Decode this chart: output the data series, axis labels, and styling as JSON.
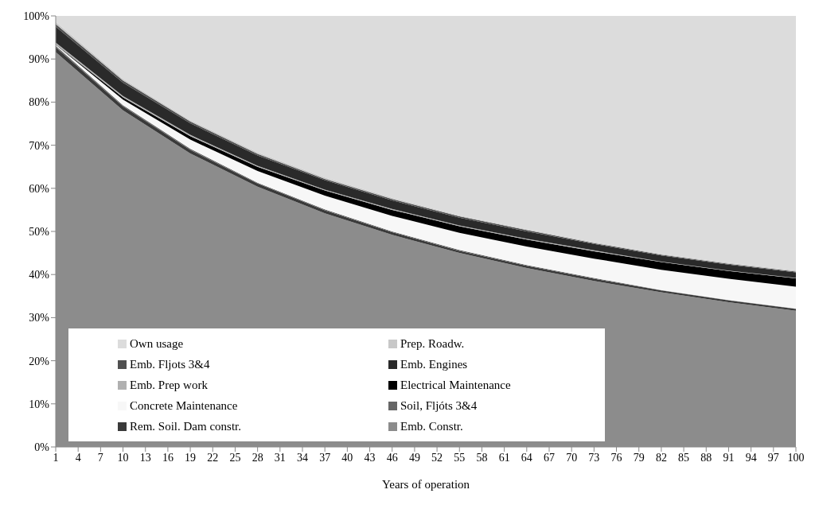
{
  "chart_data": {
    "type": "area",
    "stacked": true,
    "xlabel": "Years of operation",
    "x": [
      1,
      10,
      19,
      28,
      37,
      46,
      55,
      64,
      73,
      82,
      91,
      100
    ],
    "xlim": [
      1,
      100
    ],
    "xticks": [
      1,
      4,
      7,
      10,
      13,
      16,
      19,
      22,
      25,
      28,
      31,
      34,
      37,
      40,
      43,
      46,
      49,
      52,
      55,
      58,
      61,
      64,
      67,
      70,
      73,
      76,
      79,
      82,
      85,
      88,
      91,
      94,
      97,
      100
    ],
    "ylim": [
      0,
      100
    ],
    "yticks": [
      {
        "value": 0,
        "label": "0%"
      },
      {
        "value": 10,
        "label": "10%"
      },
      {
        "value": 20,
        "label": "20%"
      },
      {
        "value": 30,
        "label": "30%"
      },
      {
        "value": 40,
        "label": "40%"
      },
      {
        "value": 50,
        "label": "50%"
      },
      {
        "value": 60,
        "label": "60%"
      },
      {
        "value": 70,
        "label": "70%"
      },
      {
        "value": 80,
        "label": "80%"
      },
      {
        "value": 90,
        "label": "90%"
      },
      {
        "value": 100,
        "label": "100%"
      }
    ],
    "grid": false,
    "legend": "bottom left",
    "series": [
      {
        "name": "Emb. Constr.",
        "color": "#8c8c8c",
        "values": [
          91.6,
          78.1,
          68.1,
          60.4,
          54.2,
          49.2,
          45.0,
          41.5,
          38.5,
          35.9,
          33.6,
          31.6
        ]
      },
      {
        "name": "Rem. Soil. Dam constr.",
        "color": "#3a3a3a",
        "values": [
          1.1,
          0.9,
          0.8,
          0.7,
          0.7,
          0.6,
          0.5,
          0.5,
          0.5,
          0.4,
          0.4,
          0.4
        ]
      },
      {
        "name": "Soil, Fljóts 3&4",
        "color": "#666666",
        "values": [
          0.4,
          0.3,
          0.3,
          0.2,
          0.2,
          0.2,
          0.2,
          0.2,
          0.2,
          0.1,
          0.1,
          0.1
        ]
      },
      {
        "name": "Concrete Maintenance",
        "color": "#f7f7f7",
        "values": [
          0.2,
          1.3,
          2.1,
          2.7,
          3.2,
          3.6,
          4.0,
          4.3,
          4.5,
          4.7,
          4.9,
          5.1
        ]
      },
      {
        "name": "Electrical Maintenance",
        "color": "#000000",
        "values": [
          0.1,
          0.5,
          0.8,
          1.0,
          1.2,
          1.4,
          1.5,
          1.6,
          1.7,
          1.8,
          1.8,
          1.9
        ]
      },
      {
        "name": "Emb. Prep work",
        "color": "#b0b0b0",
        "values": [
          0.4,
          0.3,
          0.3,
          0.2,
          0.2,
          0.2,
          0.2,
          0.2,
          0.2,
          0.1,
          0.1,
          0.1
        ]
      },
      {
        "name": "Emb. Engines",
        "color": "#2a2a2a",
        "values": [
          3.7,
          3.1,
          2.7,
          2.4,
          2.2,
          2.0,
          1.8,
          1.7,
          1.5,
          1.4,
          1.4,
          1.3
        ]
      },
      {
        "name": "Emb. Fljots 3&4",
        "color": "#505050",
        "values": [
          0.6,
          0.5,
          0.4,
          0.4,
          0.3,
          0.3,
          0.3,
          0.3,
          0.2,
          0.2,
          0.2,
          0.2
        ]
      },
      {
        "name": "Prep. Roadw.",
        "color": "#c8c8c8",
        "values": [
          0.5,
          0.4,
          0.3,
          0.3,
          0.3,
          0.3,
          0.2,
          0.2,
          0.2,
          0.2,
          0.2,
          0.2
        ]
      },
      {
        "name": "Own usage",
        "color": "#dcdcdc",
        "values": [
          1.4,
          14.6,
          24.2,
          31.7,
          37.5,
          42.2,
          46.3,
          49.5,
          52.5,
          55.2,
          57.3,
          59.1
        ]
      }
    ]
  }
}
